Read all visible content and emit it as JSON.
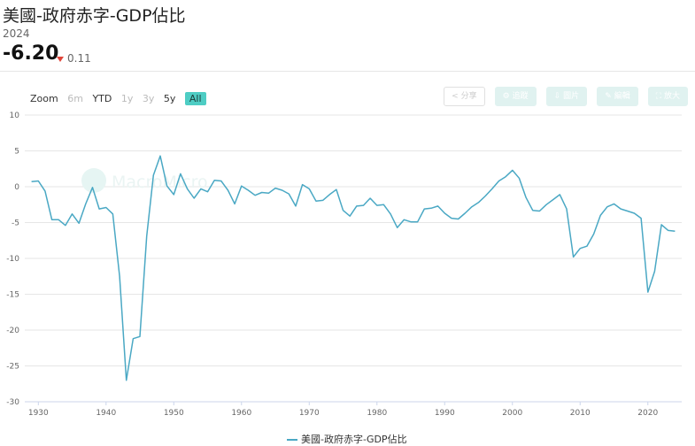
{
  "header": {
    "title": "美國-政府赤字-GDP佔比",
    "year": "2024",
    "latest_value": "-6.20",
    "change": "0.11",
    "change_direction": "down",
    "down_color": "#e0453a"
  },
  "zoom": {
    "label": "Zoom",
    "options": [
      {
        "label": "6m",
        "enabled": false
      },
      {
        "label": "YTD",
        "enabled": true
      },
      {
        "label": "1y",
        "enabled": false
      },
      {
        "label": "3y",
        "enabled": false
      },
      {
        "label": "5y",
        "enabled": true
      },
      {
        "label": "All",
        "enabled": true,
        "active": true
      }
    ]
  },
  "toolbar": {
    "share": "分享",
    "subscribe": "追蹤",
    "download": "圖片",
    "edit": "編輯",
    "fullscreen": "放大"
  },
  "watermark": "MacroMicro",
  "chart_data": {
    "type": "line",
    "title": "",
    "xlabel": "",
    "ylabel": "",
    "xlim": [
      1928,
      2025
    ],
    "ylim": [
      -30,
      10
    ],
    "x_ticks": [
      1930,
      1940,
      1950,
      1960,
      1970,
      1980,
      1990,
      2000,
      2010,
      2020
    ],
    "y_ticks": [
      10,
      5,
      0,
      -5,
      -10,
      -15,
      -20,
      -25,
      -30
    ],
    "grid": true,
    "legend_position": "bottom",
    "line_color": "#4aa8c4",
    "series": [
      {
        "name": "美國-政府赤字-GDP佔比",
        "x": [
          1929,
          1930,
          1931,
          1932,
          1933,
          1934,
          1935,
          1936,
          1937,
          1938,
          1939,
          1940,
          1941,
          1942,
          1943,
          1944,
          1945,
          1946,
          1947,
          1948,
          1949,
          1950,
          1951,
          1952,
          1953,
          1954,
          1955,
          1956,
          1957,
          1958,
          1959,
          1960,
          1961,
          1962,
          1963,
          1964,
          1965,
          1966,
          1967,
          1968,
          1969,
          1970,
          1971,
          1972,
          1973,
          1974,
          1975,
          1976,
          1977,
          1978,
          1979,
          1980,
          1981,
          1982,
          1983,
          1984,
          1985,
          1986,
          1987,
          1988,
          1989,
          1990,
          1991,
          1992,
          1993,
          1994,
          1995,
          1996,
          1997,
          1998,
          1999,
          2000,
          2001,
          2002,
          2003,
          2004,
          2005,
          2006,
          2007,
          2008,
          2009,
          2010,
          2011,
          2012,
          2013,
          2014,
          2015,
          2016,
          2017,
          2018,
          2019,
          2020,
          2021,
          2022,
          2023,
          2024
        ],
        "values": [
          0.7,
          0.8,
          -0.6,
          -4.6,
          -4.6,
          -5.4,
          -3.8,
          -5.1,
          -2.4,
          -0.1,
          -3.1,
          -2.9,
          -3.8,
          -12.5,
          -27.0,
          -21.2,
          -20.9,
          -6.9,
          1.6,
          4.3,
          0.1,
          -1.1,
          1.8,
          -0.3,
          -1.6,
          -0.3,
          -0.7,
          0.9,
          0.8,
          -0.5,
          -2.4,
          0.1,
          -0.5,
          -1.2,
          -0.8,
          -0.9,
          -0.2,
          -0.5,
          -1.0,
          -2.7,
          0.3,
          -0.3,
          -2.0,
          -1.9,
          -1.1,
          -0.4,
          -3.3,
          -4.1,
          -2.7,
          -2.6,
          -1.6,
          -2.6,
          -2.5,
          -3.8,
          -5.7,
          -4.6,
          -4.9,
          -4.9,
          -3.1,
          -3.0,
          -2.7,
          -3.7,
          -4.4,
          -4.5,
          -3.7,
          -2.8,
          -2.2,
          -1.3,
          -0.3,
          0.8,
          1.4,
          2.3,
          1.2,
          -1.5,
          -3.3,
          -3.4,
          -2.5,
          -1.8,
          -1.1,
          -3.1,
          -9.8,
          -8.6,
          -8.3,
          -6.6,
          -4.0,
          -2.8,
          -2.4,
          -3.1,
          -3.4,
          -3.7,
          -4.4,
          -14.7,
          -11.8,
          -5.3,
          -6.1,
          -6.2
        ]
      }
    ]
  },
  "legend": {
    "label": "美國-政府赤字-GDP佔比"
  }
}
